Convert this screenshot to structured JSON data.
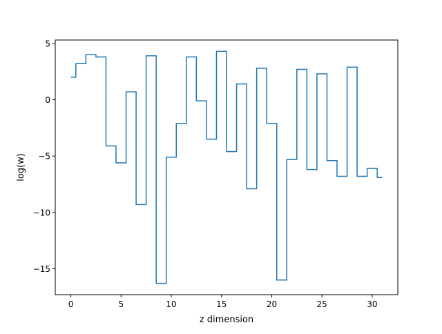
{
  "chart_data": {
    "type": "line",
    "style": "step-mid",
    "title": "",
    "xlabel": "z dimension",
    "ylabel": "log(w)",
    "xlim": [
      -1.55,
      32.55
    ],
    "ylim": [
      -17.3,
      5.3
    ],
    "xticks": [
      0,
      5,
      10,
      15,
      20,
      25,
      30
    ],
    "xtick_labels": [
      "0",
      "5",
      "10",
      "15",
      "20",
      "25",
      "30"
    ],
    "yticks": [
      5,
      0,
      -5,
      -10,
      -15
    ],
    "ytick_labels": [
      "5",
      "0",
      "−5",
      "−10",
      "−15"
    ],
    "grid": false,
    "legend": "none",
    "series": [
      {
        "color": "#1f77b4",
        "x": [
          0,
          1,
          2,
          3,
          4,
          5,
          6,
          7,
          8,
          9,
          10,
          11,
          12,
          13,
          14,
          15,
          16,
          17,
          18,
          19,
          20,
          21,
          22,
          23,
          24,
          25,
          26,
          27,
          28,
          29,
          30,
          31
        ],
        "y": [
          2.0,
          3.2,
          4.0,
          3.8,
          -4.1,
          -5.6,
          0.7,
          -9.3,
          3.9,
          -16.3,
          -5.1,
          -2.1,
          3.8,
          -0.1,
          -3.5,
          4.3,
          -4.6,
          1.4,
          -7.9,
          2.8,
          -2.1,
          -16.0,
          -5.3,
          2.7,
          -6.2,
          2.3,
          -5.4,
          -6.8,
          2.9,
          -6.8,
          -6.1,
          -6.9
        ]
      }
    ]
  }
}
